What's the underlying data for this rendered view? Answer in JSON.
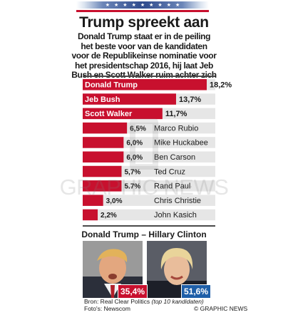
{
  "header": {
    "title": "Trump spreekt aan",
    "subtitle": "Donald Trump staat er in de peiling het beste voor van de kandidaten voor de Republikeinse nominatie voor het presidentschap 2016, hij laat Jeb Bush en Scott Walker ruim achter zich"
  },
  "colors": {
    "accent_red": "#c8102e",
    "clinton_blue": "#1f5fa8",
    "bar_gray": "#e6e6e6"
  },
  "chart_data": {
    "type": "bar",
    "orientation": "horizontal",
    "categories": [
      "Donald Trump",
      "Jeb Bush",
      "Scott Walker",
      "Marco Rubio",
      "Mike Huckabee",
      "Ben Carson",
      "Ted Cruz",
      "Rand Paul",
      "Chris Christie",
      "John Kasich"
    ],
    "values": [
      18.2,
      13.7,
      11.7,
      6.5,
      6.0,
      6.0,
      5.7,
      5.7,
      3.0,
      2.2
    ],
    "value_labels": [
      "18,2%",
      "13,7%",
      "11,7%",
      "6,5%",
      "6,0%",
      "6,0%",
      "5,7%",
      "5.7%",
      "3,0%",
      "2,2%"
    ],
    "label_inside_bar": [
      true,
      true,
      true,
      false,
      false,
      false,
      false,
      false,
      false,
      false
    ],
    "xlim": [
      0,
      18.2
    ],
    "grid": false
  },
  "headtohead": {
    "title": "Donald Trump – Hillary Clinton",
    "trump_pct": "35,4%",
    "clinton_pct": "51,6%",
    "trump_photo_icon": "trump-portrait",
    "clinton_photo_icon": "clinton-portrait"
  },
  "footer": {
    "source_prefix": "Bron: Real Clear Politics",
    "source_note": "(top 10 kandidaten)",
    "photos": "Foto's: Newscom",
    "copyright": "© GRAPHIC NEWS"
  },
  "watermark": "GRAPHIC NEWS"
}
